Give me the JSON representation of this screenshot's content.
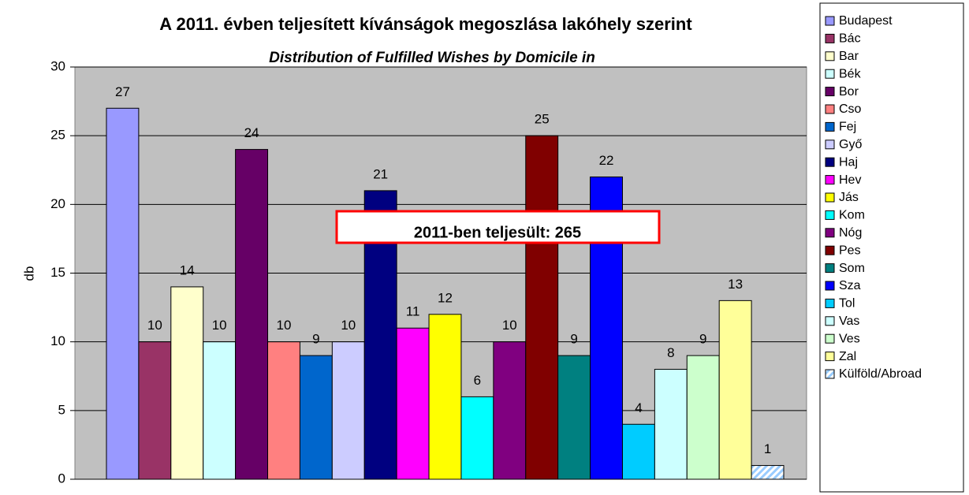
{
  "chart_data": {
    "type": "bar",
    "title": "A 2011. évben teljesített kívánságok megoszlása lakóhely szerint",
    "subtitle": "Distribution  of Fulfilled Wishes by Domicile in",
    "y_label": "db",
    "annotation": "2011-ben teljesült: 265",
    "categories": [
      null
    ],
    "series": [
      {
        "name": "Budapest",
        "color": "#9999ff",
        "values": [
          27
        ]
      },
      {
        "name": "Bác",
        "color": "#993366",
        "values": [
          10
        ]
      },
      {
        "name": "Bar",
        "color": "#ffffcc",
        "values": [
          14
        ]
      },
      {
        "name": "Bék",
        "color": "#ccffff",
        "values": [
          10
        ]
      },
      {
        "name": "Bor",
        "color": "#660066",
        "values": [
          24
        ]
      },
      {
        "name": "Cso",
        "color": "#ff8080",
        "values": [
          10
        ]
      },
      {
        "name": "Fej",
        "color": "#0066cc",
        "values": [
          9
        ]
      },
      {
        "name": "Győ",
        "color": "#ccccff",
        "values": [
          10
        ]
      },
      {
        "name": "Haj",
        "color": "#000080",
        "values": [
          21
        ]
      },
      {
        "name": "Hev",
        "color": "#ff00ff",
        "values": [
          11
        ]
      },
      {
        "name": "Jás",
        "color": "#ffff00",
        "values": [
          12
        ]
      },
      {
        "name": "Kom",
        "color": "#00ffff",
        "values": [
          6
        ]
      },
      {
        "name": "Nóg",
        "color": "#800080",
        "values": [
          10
        ]
      },
      {
        "name": "Pes",
        "color": "#800000",
        "values": [
          25
        ]
      },
      {
        "name": "Som",
        "color": "#008080",
        "values": [
          9
        ]
      },
      {
        "name": "Sza",
        "color": "#0000ff",
        "values": [
          22
        ]
      },
      {
        "name": "Tol",
        "color": "#00ccff",
        "values": [
          4
        ]
      },
      {
        "name": "Vas",
        "color": "#ccffff",
        "values": [
          8
        ]
      },
      {
        "name": "Ves",
        "color": "#ccffcc",
        "values": [
          9
        ]
      },
      {
        "name": "Zal",
        "color": "#ffff99",
        "values": [
          13
        ]
      },
      {
        "name": "Külföld/Abroad",
        "color": "#99ccff",
        "pattern": "hatch",
        "values": [
          1
        ]
      }
    ],
    "ylim": [
      0,
      30
    ],
    "yticks": [
      0,
      5,
      10,
      15,
      20,
      25,
      30
    ],
    "grid": true,
    "legend": "right"
  }
}
